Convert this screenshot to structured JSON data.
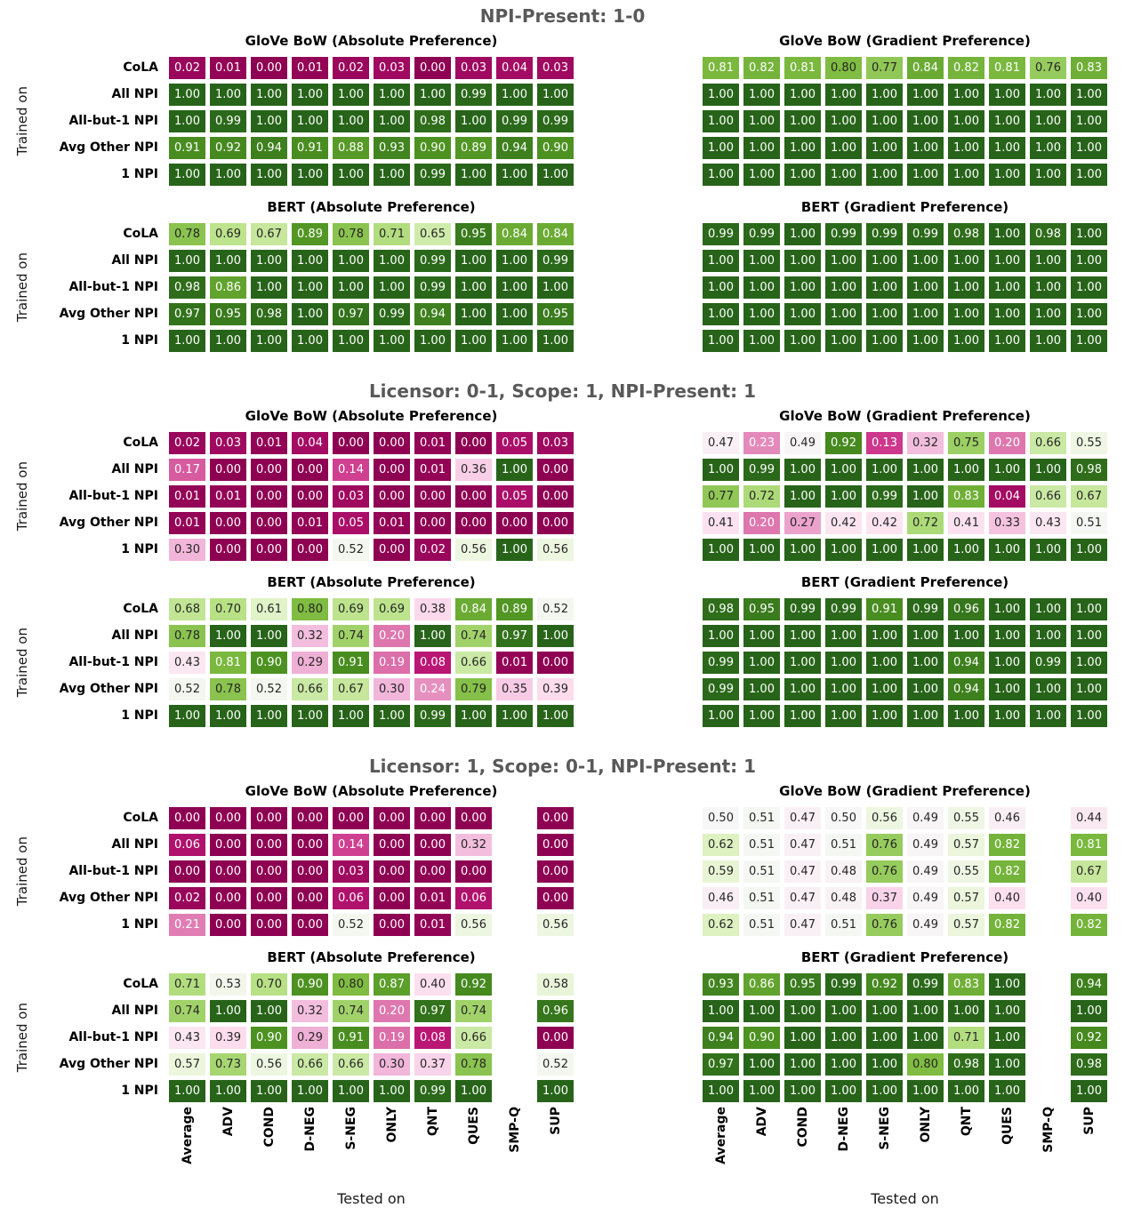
{
  "chart_data": {
    "type": "heatmap",
    "colormap": "PiYG",
    "vmin": 0,
    "vmax": 1,
    "grid": "off",
    "legend": "none",
    "xlabel": "Tested on",
    "ylabel": "Trained on",
    "columns": [
      "Average",
      "ADV",
      "COND",
      "D-NEG",
      "S-NEG",
      "ONLY",
      "QNT",
      "QUES",
      "SMP-Q",
      "SUP"
    ],
    "rows": [
      "CoLA",
      "All NPI",
      "All-but-1 NPI",
      "Avg Other NPI",
      "1 NPI"
    ],
    "sections": [
      {
        "title": "NPI-Present: 1-0",
        "panels": [
          {
            "title": "GloVe BoW (Absolute Preference)",
            "values": [
              [
                "0.02",
                "0.01",
                "0.00",
                "0.01",
                "0.02",
                "0.03",
                "0.00",
                "0.03",
                "0.04",
                "0.03"
              ],
              [
                "1.00",
                "1.00",
                "1.00",
                "1.00",
                "1.00",
                "1.00",
                "1.00",
                "0.99",
                "1.00",
                "1.00"
              ],
              [
                "1.00",
                "0.99",
                "1.00",
                "1.00",
                "1.00",
                "1.00",
                "0.98",
                "1.00",
                "0.99",
                "0.99"
              ],
              [
                "0.91",
                "0.92",
                "0.94",
                "0.91",
                "0.88",
                "0.93",
                "0.90",
                "0.89",
                "0.94",
                "0.90"
              ],
              [
                "1.00",
                "1.00",
                "1.00",
                "1.00",
                "1.00",
                "1.00",
                "0.99",
                "1.00",
                "1.00",
                "1.00"
              ]
            ]
          },
          {
            "title": "GloVe BoW (Gradient Preference)",
            "values": [
              [
                "0.81",
                "0.82",
                "0.81",
                "0.80",
                "0.77",
                "0.84",
                "0.82",
                "0.81",
                "0.76",
                "0.83"
              ],
              [
                "1.00",
                "1.00",
                "1.00",
                "1.00",
                "1.00",
                "1.00",
                "1.00",
                "1.00",
                "1.00",
                "1.00"
              ],
              [
                "1.00",
                "1.00",
                "1.00",
                "1.00",
                "1.00",
                "1.00",
                "1.00",
                "1.00",
                "1.00",
                "1.00"
              ],
              [
                "1.00",
                "1.00",
                "1.00",
                "1.00",
                "1.00",
                "1.00",
                "1.00",
                "1.00",
                "1.00",
                "1.00"
              ],
              [
                "1.00",
                "1.00",
                "1.00",
                "1.00",
                "1.00",
                "1.00",
                "1.00",
                "1.00",
                "1.00",
                "1.00"
              ]
            ]
          },
          {
            "title": "BERT (Absolute Preference)",
            "values": [
              [
                "0.78",
                "0.69",
                "0.67",
                "0.89",
                "0.78",
                "0.71",
                "0.65",
                "0.95",
                "0.84",
                "0.84"
              ],
              [
                "1.00",
                "1.00",
                "1.00",
                "1.00",
                "1.00",
                "1.00",
                "0.99",
                "1.00",
                "1.00",
                "0.99"
              ],
              [
                "0.98",
                "0.86",
                "1.00",
                "1.00",
                "1.00",
                "1.00",
                "0.99",
                "1.00",
                "1.00",
                "1.00"
              ],
              [
                "0.97",
                "0.95",
                "0.98",
                "1.00",
                "0.97",
                "0.99",
                "0.94",
                "1.00",
                "1.00",
                "0.95"
              ],
              [
                "1.00",
                "1.00",
                "1.00",
                "1.00",
                "1.00",
                "1.00",
                "1.00",
                "1.00",
                "1.00",
                "1.00"
              ]
            ]
          },
          {
            "title": "BERT (Gradient Preference)",
            "values": [
              [
                "0.99",
                "0.99",
                "1.00",
                "0.99",
                "0.99",
                "0.99",
                "0.98",
                "1.00",
                "0.98",
                "1.00"
              ],
              [
                "1.00",
                "1.00",
                "1.00",
                "1.00",
                "1.00",
                "1.00",
                "1.00",
                "1.00",
                "1.00",
                "1.00"
              ],
              [
                "1.00",
                "1.00",
                "1.00",
                "1.00",
                "1.00",
                "1.00",
                "1.00",
                "1.00",
                "1.00",
                "1.00"
              ],
              [
                "1.00",
                "1.00",
                "1.00",
                "1.00",
                "1.00",
                "1.00",
                "1.00",
                "1.00",
                "1.00",
                "1.00"
              ],
              [
                "1.00",
                "1.00",
                "1.00",
                "1.00",
                "1.00",
                "1.00",
                "1.00",
                "1.00",
                "1.00",
                "1.00"
              ]
            ]
          }
        ]
      },
      {
        "title": "Licensor: 0-1, Scope: 1, NPI-Present: 1",
        "panels": [
          {
            "title": "GloVe BoW (Absolute Preference)",
            "values": [
              [
                "0.02",
                "0.03",
                "0.01",
                "0.04",
                "0.00",
                "0.00",
                "0.01",
                "0.00",
                "0.05",
                "0.03"
              ],
              [
                "0.17",
                "0.00",
                "0.00",
                "0.00",
                "0.14",
                "0.00",
                "0.01",
                "0.36",
                "1.00",
                "0.00"
              ],
              [
                "0.01",
                "0.01",
                "0.00",
                "0.00",
                "0.03",
                "0.00",
                "0.00",
                "0.00",
                "0.05",
                "0.00"
              ],
              [
                "0.01",
                "0.00",
                "0.00",
                "0.01",
                "0.05",
                "0.01",
                "0.00",
                "0.00",
                "0.00",
                "0.00"
              ],
              [
                "0.30",
                "0.00",
                "0.00",
                "0.00",
                "0.52",
                "0.00",
                "0.02",
                "0.56",
                "1.00",
                "0.56"
              ]
            ]
          },
          {
            "title": "GloVe BoW (Gradient Preference)",
            "values": [
              [
                "0.47",
                "0.23",
                "0.49",
                "0.92",
                "0.13",
                "0.32",
                "0.75",
                "0.20",
                "0.66",
                "0.55"
              ],
              [
                "1.00",
                "0.99",
                "1.00",
                "1.00",
                "1.00",
                "1.00",
                "1.00",
                "1.00",
                "1.00",
                "0.98"
              ],
              [
                "0.77",
                "0.72",
                "1.00",
                "1.00",
                "0.99",
                "1.00",
                "0.83",
                "0.04",
                "0.66",
                "0.67"
              ],
              [
                "0.41",
                "0.20",
                "0.27",
                "0.42",
                "0.42",
                "0.72",
                "0.41",
                "0.33",
                "0.43",
                "0.51"
              ],
              [
                "1.00",
                "1.00",
                "1.00",
                "1.00",
                "1.00",
                "1.00",
                "1.00",
                "1.00",
                "1.00",
                "1.00"
              ]
            ]
          },
          {
            "title": "BERT (Absolute Preference)",
            "values": [
              [
                "0.68",
                "0.70",
                "0.61",
                "0.80",
                "0.69",
                "0.69",
                "0.38",
                "0.84",
                "0.89",
                "0.52"
              ],
              [
                "0.78",
                "1.00",
                "1.00",
                "0.32",
                "0.74",
                "0.20",
                "1.00",
                "0.74",
                "0.97",
                "1.00"
              ],
              [
                "0.43",
                "0.81",
                "0.90",
                "0.29",
                "0.91",
                "0.19",
                "0.08",
                "0.66",
                "0.01",
                "0.00"
              ],
              [
                "0.52",
                "0.78",
                "0.52",
                "0.66",
                "0.67",
                "0.30",
                "0.24",
                "0.79",
                "0.35",
                "0.39"
              ],
              [
                "1.00",
                "1.00",
                "1.00",
                "1.00",
                "1.00",
                "1.00",
                "0.99",
                "1.00",
                "1.00",
                "1.00"
              ]
            ]
          },
          {
            "title": "BERT (Gradient Preference)",
            "values": [
              [
                "0.98",
                "0.95",
                "0.99",
                "0.99",
                "0.91",
                "0.99",
                "0.96",
                "1.00",
                "1.00",
                "1.00"
              ],
              [
                "1.00",
                "1.00",
                "1.00",
                "1.00",
                "1.00",
                "1.00",
                "1.00",
                "1.00",
                "1.00",
                "1.00"
              ],
              [
                "0.99",
                "1.00",
                "1.00",
                "1.00",
                "1.00",
                "1.00",
                "0.94",
                "1.00",
                "0.99",
                "1.00"
              ],
              [
                "0.99",
                "1.00",
                "1.00",
                "1.00",
                "1.00",
                "1.00",
                "0.94",
                "1.00",
                "1.00",
                "1.00"
              ],
              [
                "1.00",
                "1.00",
                "1.00",
                "1.00",
                "1.00",
                "1.00",
                "1.00",
                "1.00",
                "1.00",
                "1.00"
              ]
            ]
          }
        ]
      },
      {
        "title": "Licensor: 1, Scope: 0-1, NPI-Present: 1",
        "panels": [
          {
            "title": "GloVe BoW (Absolute Preference)",
            "values": [
              [
                "0.00",
                "0.00",
                "0.00",
                "0.00",
                "0.00",
                "0.00",
                "0.00",
                "0.00",
                null,
                "0.00"
              ],
              [
                "0.06",
                "0.00",
                "0.00",
                "0.00",
                "0.14",
                "0.00",
                "0.00",
                "0.32",
                null,
                "0.00"
              ],
              [
                "0.00",
                "0.00",
                "0.00",
                "0.00",
                "0.03",
                "0.00",
                "0.00",
                "0.00",
                null,
                "0.00"
              ],
              [
                "0.02",
                "0.00",
                "0.00",
                "0.00",
                "0.06",
                "0.00",
                "0.01",
                "0.06",
                null,
                "0.00"
              ],
              [
                "0.21",
                "0.00",
                "0.00",
                "0.00",
                "0.52",
                "0.00",
                "0.01",
                "0.56",
                null,
                "0.56"
              ]
            ]
          },
          {
            "title": "GloVe BoW (Gradient Preference)",
            "values": [
              [
                "0.50",
                "0.51",
                "0.47",
                "0.50",
                "0.56",
                "0.49",
                "0.55",
                "0.46",
                null,
                "0.44"
              ],
              [
                "0.62",
                "0.51",
                "0.47",
                "0.51",
                "0.76",
                "0.49",
                "0.57",
                "0.82",
                null,
                "0.81"
              ],
              [
                "0.59",
                "0.51",
                "0.47",
                "0.48",
                "0.76",
                "0.49",
                "0.55",
                "0.82",
                null,
                "0.67"
              ],
              [
                "0.46",
                "0.51",
                "0.47",
                "0.48",
                "0.37",
                "0.49",
                "0.57",
                "0.40",
                null,
                "0.40"
              ],
              [
                "0.62",
                "0.51",
                "0.47",
                "0.51",
                "0.76",
                "0.49",
                "0.57",
                "0.82",
                null,
                "0.82"
              ]
            ]
          },
          {
            "title": "BERT (Absolute Preference)",
            "values": [
              [
                "0.71",
                "0.53",
                "0.70",
                "0.90",
                "0.80",
                "0.87",
                "0.40",
                "0.92",
                null,
                "0.58"
              ],
              [
                "0.74",
                "1.00",
                "1.00",
                "0.32",
                "0.74",
                "0.20",
                "0.97",
                "0.74",
                null,
                "0.96"
              ],
              [
                "0.43",
                "0.39",
                "0.90",
                "0.29",
                "0.91",
                "0.19",
                "0.08",
                "0.66",
                null,
                "0.00"
              ],
              [
                "0.57",
                "0.73",
                "0.56",
                "0.66",
                "0.66",
                "0.30",
                "0.37",
                "0.78",
                null,
                "0.52"
              ],
              [
                "1.00",
                "1.00",
                "1.00",
                "1.00",
                "1.00",
                "1.00",
                "0.99",
                "1.00",
                null,
                "1.00"
              ]
            ]
          },
          {
            "title": "BERT (Gradient Preference)",
            "values": [
              [
                "0.93",
                "0.86",
                "0.95",
                "0.99",
                "0.92",
                "0.99",
                "0.83",
                "1.00",
                null,
                "0.94"
              ],
              [
                "1.00",
                "1.00",
                "1.00",
                "1.00",
                "1.00",
                "1.00",
                "1.00",
                "1.00",
                null,
                "1.00"
              ],
              [
                "0.94",
                "0.90",
                "1.00",
                "1.00",
                "1.00",
                "1.00",
                "0.71",
                "1.00",
                null,
                "0.92"
              ],
              [
                "0.97",
                "1.00",
                "1.00",
                "1.00",
                "1.00",
                "0.80",
                "0.98",
                "1.00",
                null,
                "0.98"
              ],
              [
                "1.00",
                "1.00",
                "1.00",
                "1.00",
                "1.00",
                "1.00",
                "1.00",
                "1.00",
                null,
                "1.00"
              ]
            ]
          }
        ]
      }
    ],
    "colors": {
      "section_title": "#595959",
      "panel_title": "#000000",
      "annot_dark": "#262626",
      "annot_light": "#ffffff",
      "background": "#ffffff"
    }
  }
}
